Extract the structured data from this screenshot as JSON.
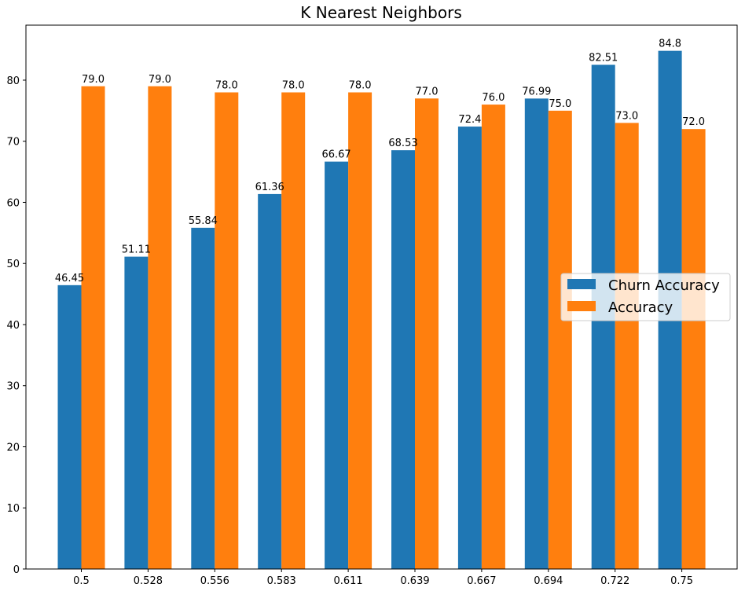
{
  "chart_data": {
    "type": "bar",
    "title": "K Nearest Neighbors",
    "xlabel": "",
    "ylabel": "",
    "categories": [
      "0.5",
      "0.528",
      "0.556",
      "0.583",
      "0.611",
      "0.639",
      "0.667",
      "0.694",
      "0.722",
      "0.75"
    ],
    "series": [
      {
        "name": "Churn Accuracy",
        "color": "#1f77b4",
        "values": [
          46.45,
          51.11,
          55.84,
          61.36,
          66.67,
          68.53,
          72.4,
          76.99,
          82.51,
          84.8
        ]
      },
      {
        "name": "Accuracy",
        "color": "#ff7f0e",
        "values": [
          79.0,
          79.0,
          78.0,
          78.0,
          78.0,
          77.0,
          76.0,
          75.0,
          73.0,
          72.0
        ]
      }
    ],
    "data_labels": [
      [
        "46.45",
        "51.11",
        "55.84",
        "61.36",
        "66.67",
        "68.53",
        "72.4",
        "76.99",
        "82.51",
        "84.8"
      ],
      [
        "79.0",
        "79.0",
        "78.0",
        "78.0",
        "78.0",
        "77.0",
        "76.0",
        "75.0",
        "73.0",
        "72.0"
      ]
    ],
    "yticks": [
      "0",
      "10",
      "20",
      "30",
      "40",
      "50",
      "60",
      "70",
      "80"
    ],
    "ylim": [
      0,
      89
    ],
    "grid": false,
    "legend_position": "center-right"
  }
}
